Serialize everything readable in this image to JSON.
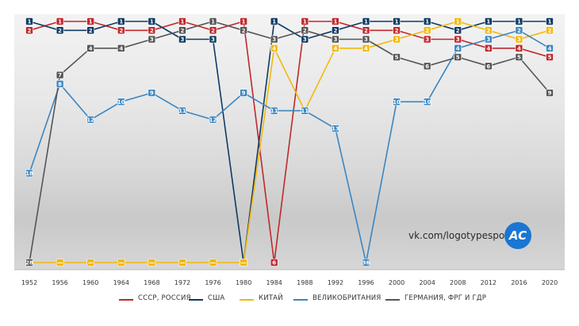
{
  "credit": "vk.com/logotypesport",
  "logo_text": "AC",
  "chart_data": {
    "type": "line",
    "title": "",
    "xlabel": "",
    "ylabel": "",
    "y_inverted": true,
    "ylim": [
      1,
      28
    ],
    "grid": false,
    "legend_position": "bottom",
    "x": [
      "1952",
      "1956",
      "1960",
      "1964",
      "1968",
      "1972",
      "1976",
      "1980",
      "1984",
      "1988",
      "1992",
      "1996",
      "2000",
      "2004",
      "2008",
      "2012",
      "2016",
      "2020"
    ],
    "series": [
      {
        "name": "СССР, РОССИЯ",
        "color": "#c0282d",
        "values": [
          2,
          1,
          1,
          2,
          2,
          1,
          2,
          1,
          null,
          1,
          1,
          2,
          2,
          3,
          3,
          4,
          4,
          5
        ],
        "labels": [
          "2",
          "1",
          "1",
          "2",
          "2",
          "1",
          "2",
          "1",
          "6",
          "1",
          "1",
          "2",
          "2",
          "3",
          "3",
          "4",
          "4",
          "5"
        ],
        "plotted": [
          2,
          1,
          1,
          2,
          2,
          1,
          2,
          1,
          28,
          1,
          1,
          2,
          2,
          3,
          3,
          4,
          4,
          5
        ]
      },
      {
        "name": "США",
        "color": "#0f3a63",
        "values": [
          1,
          2,
          2,
          1,
          1,
          3,
          3,
          null,
          1,
          3,
          2,
          1,
          1,
          1,
          2,
          1,
          1,
          1
        ],
        "labels": [
          "1",
          "2",
          "2",
          "1",
          "1",
          "3",
          "3",
          "6",
          "1",
          "3",
          "2",
          "1",
          "1",
          "1",
          "2",
          "1",
          "1",
          "1"
        ],
        "plotted": [
          1,
          2,
          2,
          1,
          1,
          3,
          3,
          28,
          1,
          3,
          2,
          1,
          1,
          1,
          2,
          1,
          1,
          1
        ]
      },
      {
        "name": "КИТАЙ",
        "color": "#f2b90c",
        "values": [
          null,
          null,
          null,
          null,
          null,
          null,
          null,
          null,
          4,
          11,
          4,
          4,
          3,
          2,
          1,
          2,
          3,
          2
        ],
        "labels": [
          "—",
          "—",
          "—",
          "—",
          "—",
          "—",
          "—",
          "—",
          "4",
          "11",
          "4",
          "4",
          "3",
          "2",
          "1",
          "2",
          "3",
          "2"
        ],
        "plotted": [
          28,
          28,
          28,
          28,
          28,
          28,
          28,
          28,
          4,
          11,
          4,
          4,
          3,
          2,
          1,
          2,
          3,
          2
        ]
      },
      {
        "name": "ВЕЛИКОБРИТАНИЯ",
        "color": "#3a86c2",
        "values": [
          18,
          8,
          12,
          10,
          9,
          11,
          12,
          9,
          11,
          11,
          13,
          36,
          10,
          10,
          4,
          3,
          2,
          4
        ],
        "labels": [
          "18",
          "8",
          "12",
          "10",
          "9",
          "11",
          "12",
          "9",
          "11",
          "11",
          "13",
          "36",
          "10",
          "10",
          "4",
          "3",
          "2",
          "4"
        ],
        "plotted": [
          18,
          8,
          12,
          10,
          9,
          11,
          12,
          9,
          11,
          11,
          13,
          28,
          10,
          10,
          4,
          3,
          2,
          4
        ]
      },
      {
        "name": "ГЕРМАНИЯ, ФРГ И ГДР",
        "color": "#555555",
        "values": [
          28,
          7,
          4,
          4,
          3,
          2,
          1,
          2,
          3,
          2,
          3,
          3,
          5,
          6,
          5,
          6,
          5,
          9
        ],
        "labels": [
          "28",
          "7",
          "4",
          "4",
          "3",
          "2",
          "1",
          "2",
          "3",
          "2",
          "3",
          "3",
          "5",
          "6",
          "5",
          "6",
          "5",
          "9"
        ],
        "plotted": [
          28,
          7,
          4,
          4,
          3,
          2,
          1,
          2,
          3,
          2,
          3,
          3,
          5,
          6,
          5,
          6,
          5,
          9
        ]
      }
    ]
  }
}
